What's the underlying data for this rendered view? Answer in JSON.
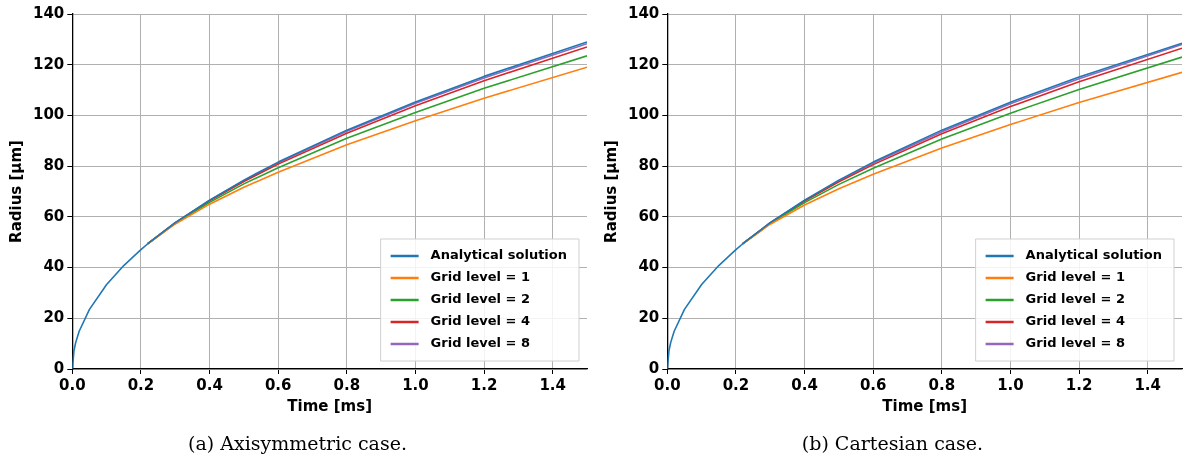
{
  "chart_data": [
    {
      "type": "line",
      "xlabel": "Time [ms]",
      "ylabel": "Radius [μm]",
      "xlim": [
        0,
        1.5
      ],
      "ylim": [
        0,
        140
      ],
      "xticks": [
        {
          "value": 0,
          "label": "0.0"
        },
        {
          "value": 0.2,
          "label": "0.2"
        },
        {
          "value": 0.4,
          "label": "0.4"
        },
        {
          "value": 0.6,
          "label": "0.6"
        },
        {
          "value": 0.8,
          "label": "0.8"
        },
        {
          "value": 1,
          "label": "1.0"
        },
        {
          "value": 1.2,
          "label": "1.2"
        },
        {
          "value": 1.4,
          "label": "1.4"
        }
      ],
      "yticks": [
        0,
        20,
        40,
        60,
        80,
        100,
        120,
        140
      ],
      "grid": true,
      "legend": "bottom right",
      "annotations": [
        "(a) Axisymmetric case."
      ],
      "series": [
        {
          "name": "Analytical solution",
          "color": "#1f77b4",
          "x": [
            0,
            0.005,
            0.01,
            0.02,
            0.05,
            0.1,
            0.15,
            0.2,
            0.22,
            0.3,
            0.4,
            0.5,
            0.6,
            0.8,
            1.0,
            1.2,
            1.5
          ],
          "values": [
            0,
            7.4,
            10.5,
            14.9,
            23.5,
            33.3,
            40.8,
            47.1,
            49.4,
            57.7,
            66.6,
            74.5,
            81.6,
            94.2,
            105.3,
            115.4,
            129.0
          ]
        },
        {
          "name": "Grid level = 1",
          "color": "#ff7f0e",
          "x": [
            0.22,
            0.3,
            0.4,
            0.5,
            0.6,
            0.8,
            1.0,
            1.2,
            1.5
          ],
          "values": [
            49.4,
            57.2,
            65.0,
            71.7,
            77.6,
            88.4,
            97.9,
            106.8,
            119.0
          ]
        },
        {
          "name": "Grid level = 2",
          "color": "#2ca02c",
          "x": [
            0.22,
            0.3,
            0.4,
            0.5,
            0.6,
            0.8,
            1.0,
            1.2,
            1.5
          ],
          "values": [
            49.4,
            57.4,
            65.7,
            73.0,
            79.4,
            91.0,
            101.2,
            110.7,
            123.5
          ]
        },
        {
          "name": "Grid level = 4",
          "color": "#d62728",
          "x": [
            0.22,
            0.3,
            0.4,
            0.5,
            0.6,
            0.8,
            1.0,
            1.2,
            1.5
          ],
          "values": [
            49.4,
            57.6,
            66.3,
            73.9,
            80.8,
            93.0,
            103.8,
            113.7,
            127.0
          ]
        },
        {
          "name": "Grid level = 8",
          "color": "#9467bd",
          "x": [
            0.22,
            0.3,
            0.4,
            0.5,
            0.6,
            0.8,
            1.0,
            1.2,
            1.5
          ],
          "values": [
            49.4,
            57.7,
            66.5,
            74.3,
            81.3,
            93.8,
            104.8,
            114.8,
            128.3
          ]
        }
      ]
    },
    {
      "type": "line",
      "xlabel": "Time [ms]",
      "ylabel": "Radius [μm]",
      "xlim": [
        0,
        1.5
      ],
      "ylim": [
        0,
        140
      ],
      "xticks": [
        {
          "value": 0,
          "label": "0.0"
        },
        {
          "value": 0.2,
          "label": "0.2"
        },
        {
          "value": 0.4,
          "label": "0.4"
        },
        {
          "value": 0.6,
          "label": "0.6"
        },
        {
          "value": 0.8,
          "label": "0.8"
        },
        {
          "value": 1,
          "label": "1.0"
        },
        {
          "value": 1.2,
          "label": "1.2"
        },
        {
          "value": 1.4,
          "label": "1.4"
        }
      ],
      "yticks": [
        0,
        20,
        40,
        60,
        80,
        100,
        120,
        140
      ],
      "grid": true,
      "legend": "bottom right",
      "annotations": [
        "(b) Cartesian case."
      ],
      "series": [
        {
          "name": "Analytical solution",
          "color": "#1f77b4",
          "x": [
            0,
            0.005,
            0.01,
            0.02,
            0.05,
            0.1,
            0.15,
            0.2,
            0.22,
            0.3,
            0.4,
            0.5,
            0.6,
            0.8,
            1.0,
            1.2,
            1.5
          ],
          "values": [
            0,
            7.4,
            10.5,
            14.9,
            23.5,
            33.3,
            40.8,
            47.1,
            49.4,
            57.7,
            66.6,
            74.5,
            81.6,
            94.2,
            105.2,
            115.2,
            128.5
          ]
        },
        {
          "name": "Grid level = 1",
          "color": "#ff7f0e",
          "x": [
            0.22,
            0.3,
            0.4,
            0.5,
            0.6,
            0.8,
            1.0,
            1.2,
            1.5
          ],
          "values": [
            49.4,
            57.1,
            64.7,
            71.1,
            76.8,
            87.2,
            96.4,
            105.1,
            117.0
          ]
        },
        {
          "name": "Grid level = 2",
          "color": "#2ca02c",
          "x": [
            0.22,
            0.3,
            0.4,
            0.5,
            0.6,
            0.8,
            1.0,
            1.2,
            1.5
          ],
          "values": [
            49.4,
            57.4,
            65.6,
            72.8,
            79.2,
            90.7,
            100.9,
            110.2,
            123.0
          ]
        },
        {
          "name": "Grid level = 4",
          "color": "#d62728",
          "x": [
            0.22,
            0.3,
            0.4,
            0.5,
            0.6,
            0.8,
            1.0,
            1.2,
            1.5
          ],
          "values": [
            49.4,
            57.6,
            66.2,
            73.8,
            80.6,
            92.8,
            103.5,
            113.3,
            126.5
          ]
        },
        {
          "name": "Grid level = 8",
          "color": "#9467bd",
          "x": [
            0.22,
            0.3,
            0.4,
            0.5,
            0.6,
            0.8,
            1.0,
            1.2,
            1.5
          ],
          "values": [
            49.4,
            57.7,
            66.4,
            74.2,
            81.2,
            93.6,
            104.6,
            114.5,
            128.0
          ]
        }
      ]
    }
  ]
}
